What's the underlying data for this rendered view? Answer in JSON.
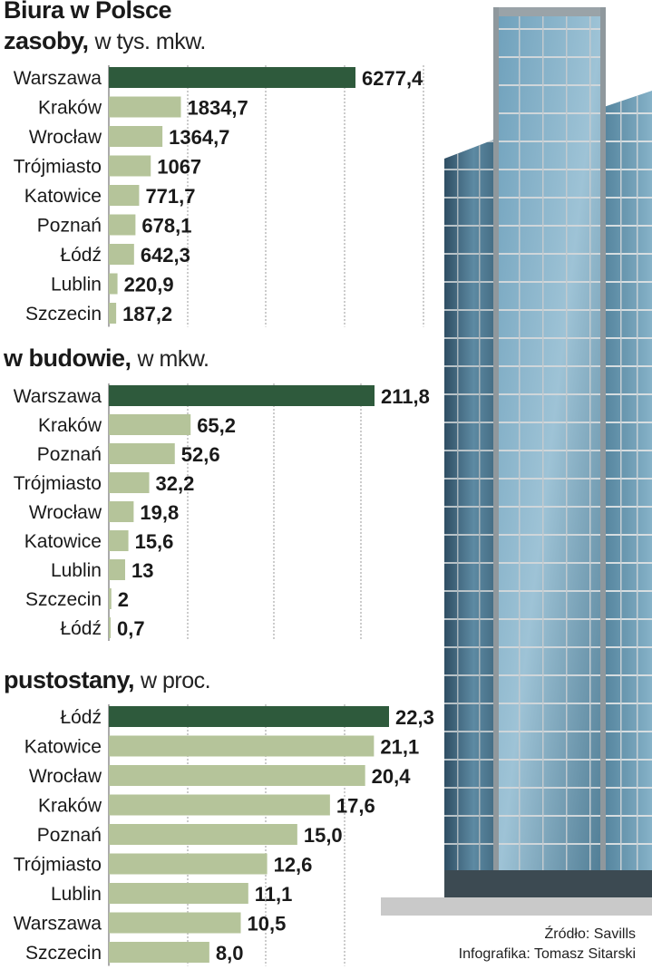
{
  "title": "Biura w Polsce",
  "colors": {
    "highlight": "#2e5a3c",
    "bar": "#b5c49a",
    "grid": "#9a9a9a",
    "text": "#1a1a1a"
  },
  "chart_data": [
    {
      "type": "bar",
      "orientation": "horizontal",
      "title_bold": "zasoby,",
      "title_unit": "w tys. mkw.",
      "categories": [
        "Warszawa",
        "Kraków",
        "Wrocław",
        "Trójmiasto",
        "Katowice",
        "Poznań",
        "Łódź",
        "Lublin",
        "Szczecin"
      ],
      "values": [
        6277.4,
        1834.7,
        1364.7,
        1067,
        771.7,
        678.1,
        642.3,
        220.9,
        187.2
      ],
      "labels": [
        "6277,4",
        "1834,7",
        "1364,7",
        "1067",
        "771,7",
        "678,1",
        "642,3",
        "220,9",
        "187,2"
      ],
      "highlight_index": 0
    },
    {
      "type": "bar",
      "orientation": "horizontal",
      "title_bold": "w budowie,",
      "title_unit": "w mkw.",
      "categories": [
        "Warszawa",
        "Kraków",
        "Poznań",
        "Trójmiasto",
        "Wrocław",
        "Katowice",
        "Lublin",
        "Szczecin",
        "Łódź"
      ],
      "values": [
        211.8,
        65.2,
        52.6,
        32.2,
        19.8,
        15.6,
        13,
        2,
        0.7
      ],
      "labels": [
        "211,8",
        "65,2",
        "52,6",
        "32,2",
        "19,8",
        "15,6",
        "13",
        "2",
        "0,7"
      ],
      "highlight_index": 0
    },
    {
      "type": "bar",
      "orientation": "horizontal",
      "title_bold": "pustostany,",
      "title_unit": "w proc.",
      "categories": [
        "Łódź",
        "Katowice",
        "Wrocław",
        "Kraków",
        "Poznań",
        "Trójmiasto",
        "Lublin",
        "Warszawa",
        "Szczecin"
      ],
      "values": [
        22.3,
        21.1,
        20.4,
        17.6,
        15.0,
        12.6,
        11.1,
        10.5,
        8.0
      ],
      "labels": [
        "22,3",
        "21,1",
        "20,4",
        "17,6",
        "15,0",
        "12,6",
        "11,1",
        "10,5",
        "8,0"
      ],
      "highlight_index": 0
    }
  ],
  "source": {
    "line1": "Źródło: Savills",
    "line2": "Infografika: Tomasz Sitarski"
  }
}
